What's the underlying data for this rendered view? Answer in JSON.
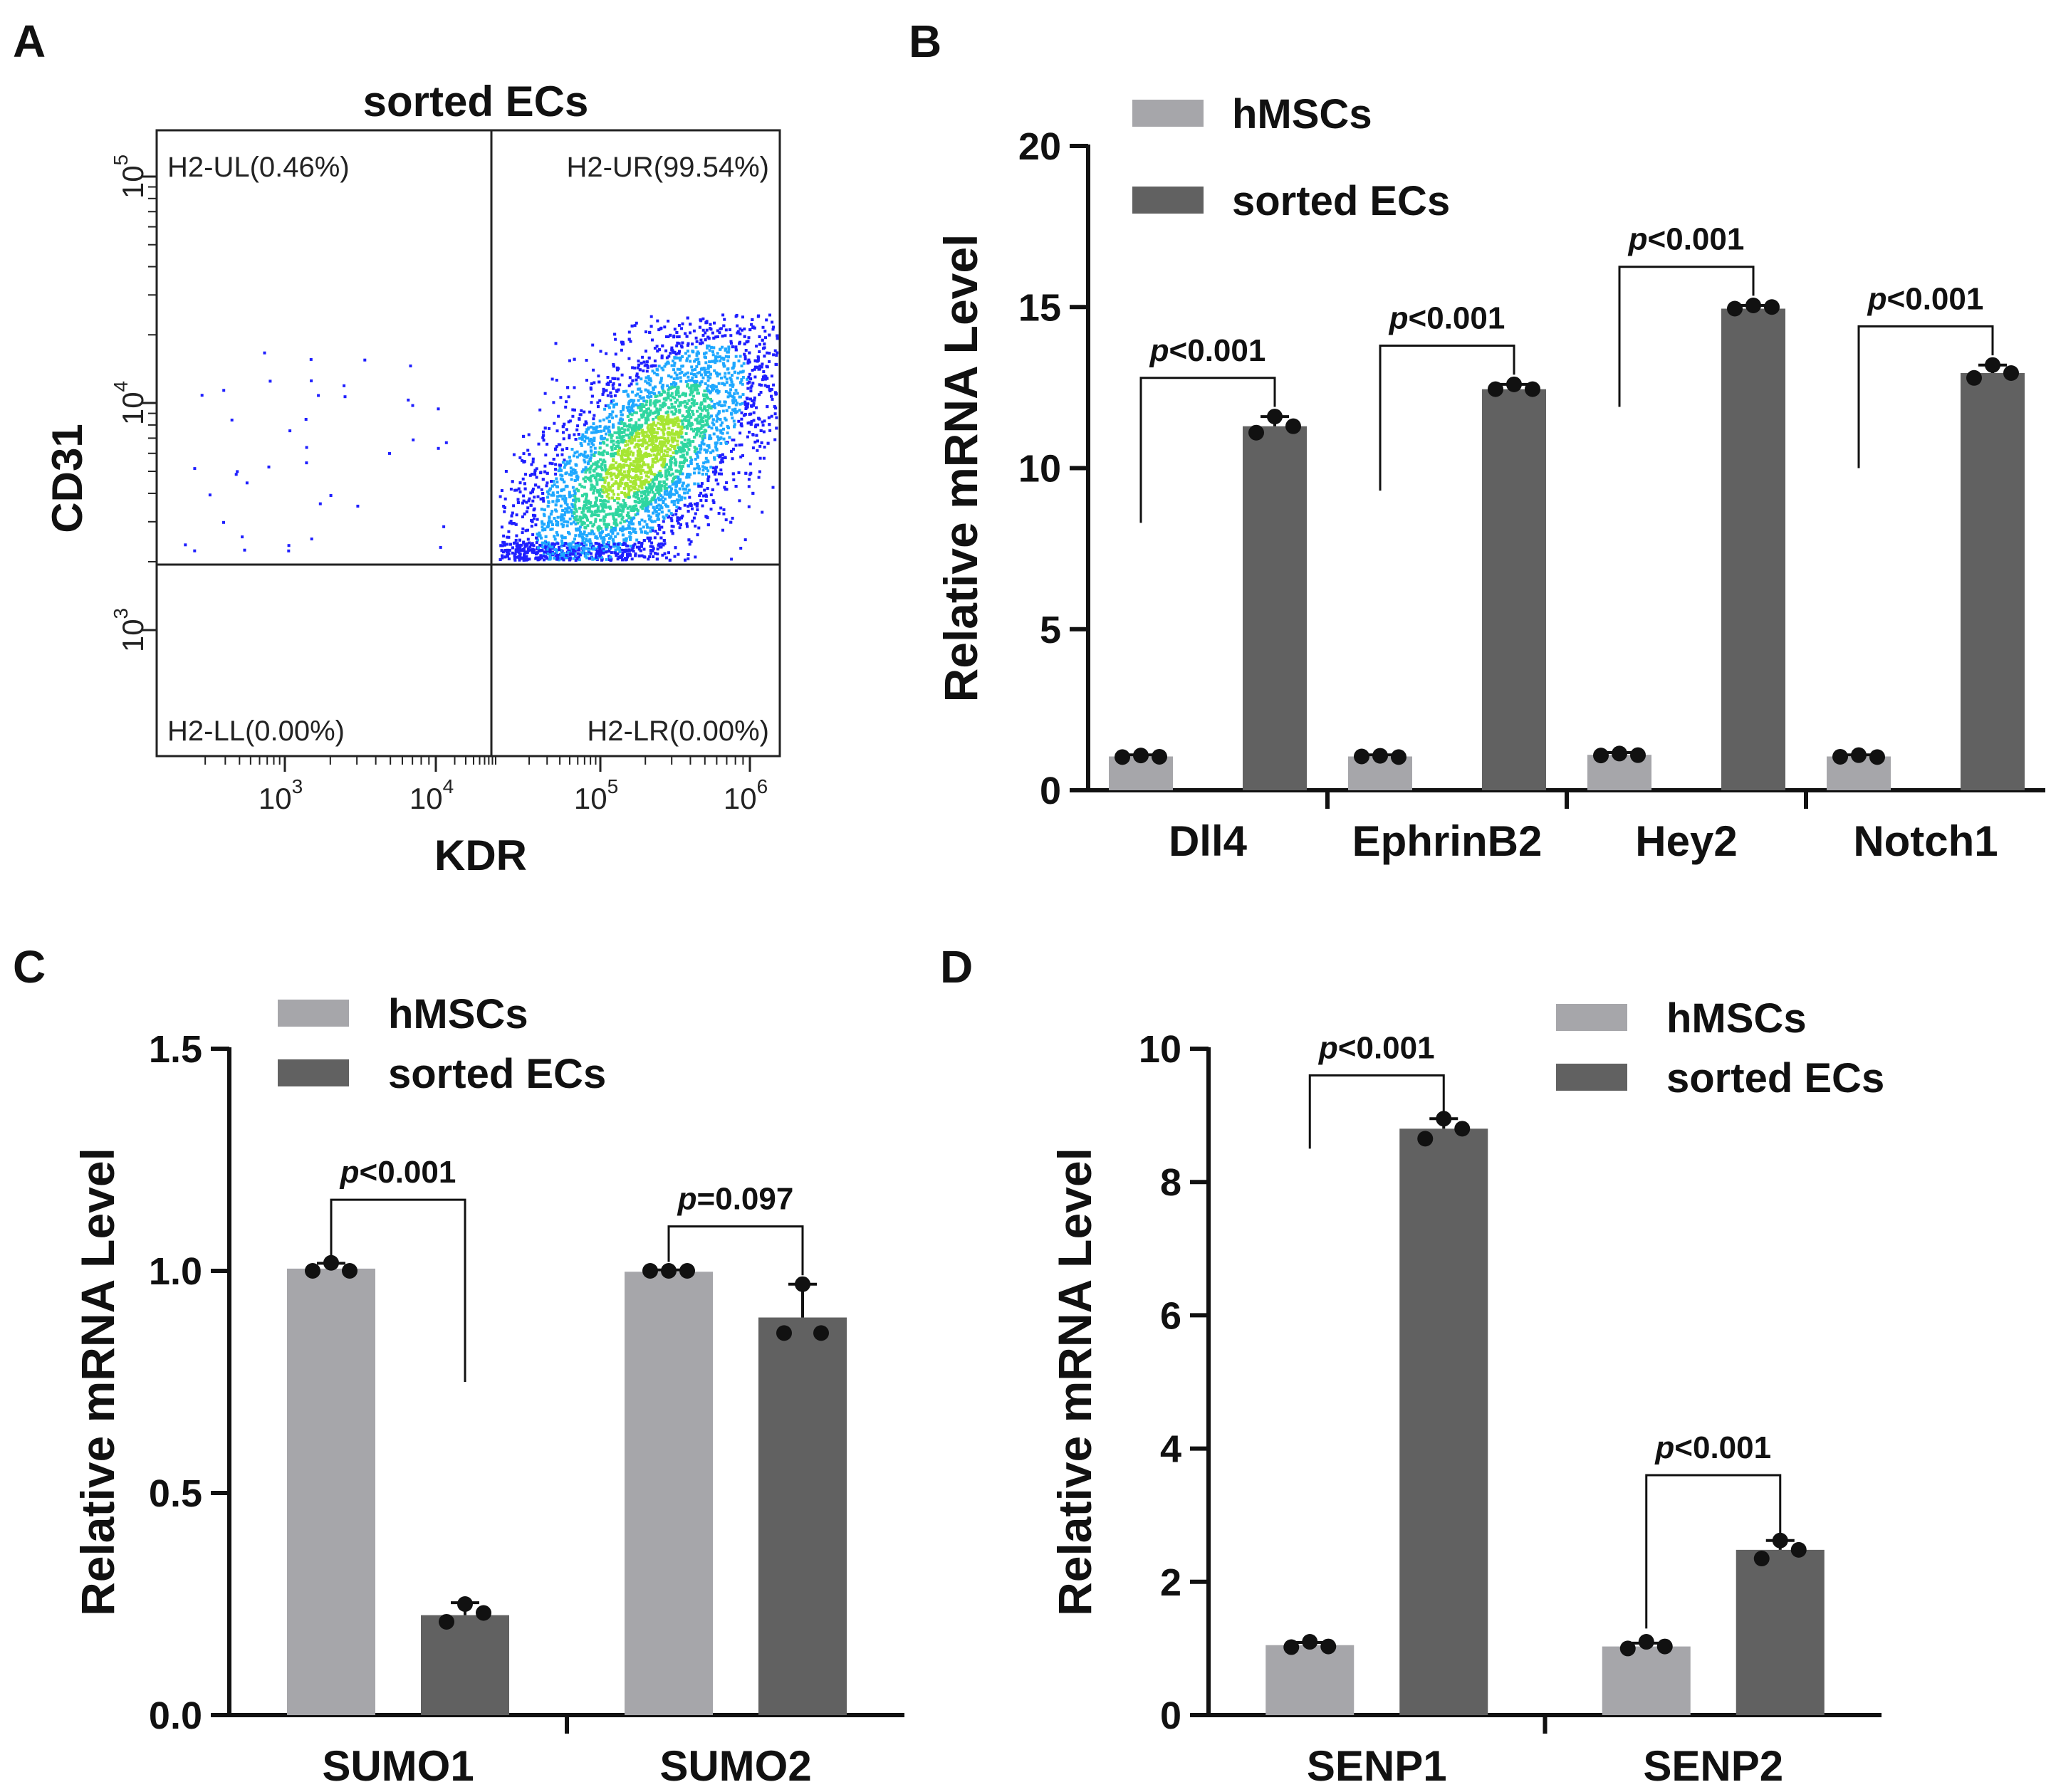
{
  "colors": {
    "hmsc": "#a6a6aa",
    "ec": "#616161",
    "axis": "#111111",
    "dot": "#111111"
  },
  "chart_data": [
    {
      "panel": "A",
      "type": "scatter",
      "title": "sorted ECs",
      "xlabel": "KDR",
      "ylabel": "CD31",
      "x_scale": "log",
      "y_scale": "log",
      "x_ticks": [
        {
          "base": "10",
          "exp": "3"
        },
        {
          "base": "10",
          "exp": "4"
        },
        {
          "base": "10",
          "exp": "5"
        },
        {
          "base": "10",
          "exp": "6"
        }
      ],
      "y_ticks": [
        {
          "base": "10",
          "exp": "3"
        },
        {
          "base": "10",
          "exp": "4"
        },
        {
          "base": "10",
          "exp": "5"
        }
      ],
      "quadrants": {
        "ul": "H2-UL(0.46%)",
        "ur": "H2-UR(99.54%)",
        "ll": "H2-LL(0.00%)",
        "lr": "H2-LR(0.00%)"
      },
      "density_colors": [
        "#1f1fff",
        "#1fa8ff",
        "#2fd6a0",
        "#a6e632"
      ]
    },
    {
      "panel": "B",
      "type": "bar",
      "categories": [
        "Dll4",
        "EphrinB2",
        "Hey2",
        "Notch1"
      ],
      "series": [
        {
          "name": "hMSCs",
          "values": [
            1.05,
            1.05,
            1.1,
            1.05
          ],
          "err": [
            0.05,
            0.05,
            0.07,
            0.05
          ],
          "points": [
            [
              1.03,
              1.08,
              1.04
            ],
            [
              1.05,
              1.07,
              1.03
            ],
            [
              1.08,
              1.14,
              1.09
            ],
            [
              1.04,
              1.09,
              1.03
            ]
          ]
        },
        {
          "name": "sorted ECs",
          "values": [
            11.3,
            12.45,
            14.95,
            12.95
          ],
          "err": [
            0.3,
            0.15,
            0.1,
            0.25
          ],
          "points": [
            [
              11.1,
              11.6,
              11.3
            ],
            [
              12.45,
              12.6,
              12.45
            ],
            [
              14.95,
              15.05,
              15.0
            ],
            [
              12.8,
              13.2,
              12.95
            ]
          ]
        }
      ],
      "ylabel": "Relative mRNA  Level",
      "ylim": [
        0,
        20
      ],
      "yticks": [
        0,
        5,
        10,
        15,
        20
      ],
      "significance": [
        {
          "category": "Dll4",
          "p": "p",
          "rest": "<0.001",
          "bracket_low": 8.3
        },
        {
          "category": "EphrinB2",
          "p": "p",
          "rest": "<0.001",
          "bracket_low": 9.3
        },
        {
          "category": "Hey2",
          "p": "p",
          "rest": "<0.001",
          "bracket_low": 11.9
        },
        {
          "category": "Notch1",
          "p": "p",
          "rest": "<0.001",
          "bracket_low": 10.0
        }
      ]
    },
    {
      "panel": "C",
      "type": "bar",
      "categories": [
        "SUMO1",
        "SUMO2"
      ],
      "series": [
        {
          "name": "hMSCs",
          "values": [
            1.005,
            0.998
          ],
          "err": [
            0.012,
            0.004
          ],
          "points": [
            [
              1.0,
              1.018,
              1.0
            ],
            [
              1.0,
              1.0,
              1.0
            ]
          ]
        },
        {
          "name": "sorted ECs",
          "values": [
            0.225,
            0.895
          ],
          "err": [
            0.028,
            0.075
          ],
          "points": [
            [
              0.21,
              0.25,
              0.23
            ],
            [
              0.86,
              0.97,
              0.86
            ]
          ]
        }
      ],
      "ylabel": "Relative mRNA  Level",
      "ylim": [
        0,
        1.5
      ],
      "yticks": [
        0.0,
        0.5,
        1.0,
        1.5
      ],
      "ytick_labels": [
        "0.0",
        "0.5",
        "1.0",
        "1.5"
      ],
      "significance": [
        {
          "category": "SUMO1",
          "p": "p",
          "rest": "<0.001",
          "bracket_low_left": 1.02,
          "bracket_low_right": 0.75,
          "bracket_top": 1.16
        },
        {
          "category": "SUMO2",
          "p": "p",
          "rest": "=0.097",
          "bracket_low_left": 1.02,
          "bracket_low_right": 0.99,
          "bracket_top": 1.1
        }
      ]
    },
    {
      "panel": "D",
      "type": "bar",
      "categories": [
        "SENP1",
        "SENP2"
      ],
      "series": [
        {
          "name": "hMSCs",
          "values": [
            1.05,
            1.03
          ],
          "err": [
            0.04,
            0.05
          ],
          "points": [
            [
              1.02,
              1.1,
              1.03
            ],
            [
              1.0,
              1.1,
              1.03
            ]
          ]
        },
        {
          "name": "sorted ECs",
          "values": [
            8.8,
            2.48
          ],
          "err": [
            0.15,
            0.14
          ],
          "points": [
            [
              8.65,
              8.95,
              8.8
            ],
            [
              2.35,
              2.62,
              2.48
            ]
          ]
        }
      ],
      "ylabel": "Relative mRNA  Level",
      "ylim": [
        0,
        10
      ],
      "yticks": [
        0,
        2,
        4,
        6,
        8,
        10
      ],
      "significance": [
        {
          "category": "SENP1",
          "p": "p",
          "rest": "<0.001",
          "bracket_low_left": 8.5,
          "bracket_low_right": 9.0,
          "bracket_top": 9.6
        },
        {
          "category": "SENP2",
          "p": "p",
          "rest": "<0.001",
          "bracket_low_left": 1.3,
          "bracket_low_right": 2.7,
          "bracket_top": 3.6
        }
      ]
    }
  ]
}
